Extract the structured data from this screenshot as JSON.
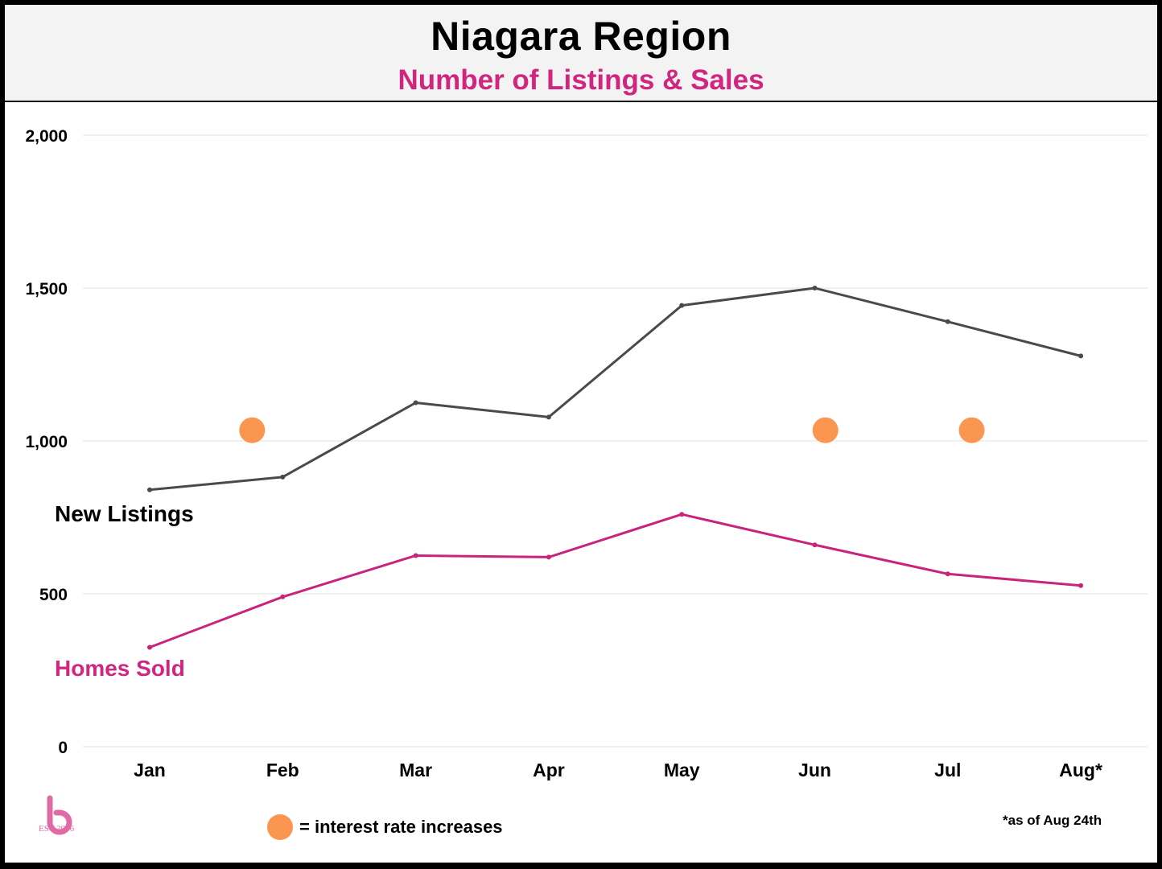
{
  "header": {
    "title": "Niagara Region",
    "subtitle": "Number of Listings & Sales"
  },
  "chart_data": {
    "type": "line",
    "categories": [
      "Jan",
      "Feb",
      "Mar",
      "Apr",
      "May",
      "Jun",
      "Jul",
      "Aug*"
    ],
    "series": [
      {
        "name": "New Listings",
        "color": "#4a4a4a",
        "values": [
          840,
          882,
          1125,
          1078,
          1443,
          1500,
          1390,
          1278
        ]
      },
      {
        "name": "Homes Sold",
        "color": "#c9247c",
        "values": [
          325,
          490,
          625,
          620,
          760,
          660,
          565,
          527
        ]
      }
    ],
    "ylim": [
      0,
      2000
    ],
    "yticks": [
      "0",
      "500",
      "1,000",
      "1,500",
      "2,000"
    ],
    "ytick_values": [
      0,
      500,
      1000,
      1500,
      2000
    ],
    "grid": true,
    "markers": {
      "meaning": "interest rate increases",
      "color": "#fb9650",
      "y": 1035,
      "x_positions": [
        1.77,
        6.08,
        7.18
      ]
    }
  },
  "legend": {
    "marker_text": "= interest rate increases"
  },
  "footnote": "*as of Aug 24th",
  "logo": {
    "icon": "b-brand-logo",
    "est_text": "EST  2006"
  }
}
